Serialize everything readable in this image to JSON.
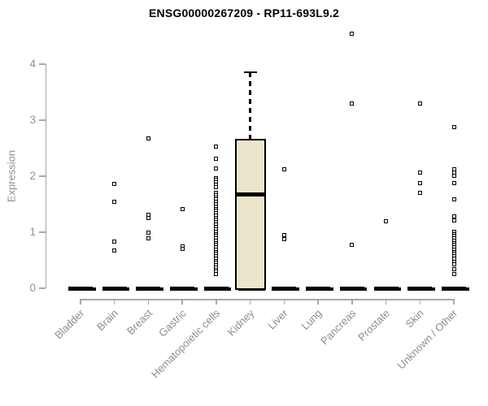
{
  "colors": {
    "background": "#ffffff",
    "axis_line": "#a8a8a8",
    "tick_label": "#8f9194",
    "category_label": "#8d8d8d",
    "point_border": "#000000",
    "box_fill": "#ebe5cb",
    "box_border": "#000000",
    "title": "#000000"
  },
  "chart_data": {
    "type": "boxplot",
    "title": "ENSG00000267209 - RP11-693L9.2",
    "ylabel": "Expression",
    "xlabel": "",
    "yticks": [
      0,
      1,
      2,
      3,
      4
    ],
    "ylim": [
      0,
      4.6
    ],
    "grid": false,
    "legend": "none",
    "categories": [
      "Bladder",
      "Brain",
      "Breast",
      "Gastric",
      "Hematopoietic cells",
      "Kidney",
      "Liver",
      "Lung",
      "Pancreas",
      "Prostate",
      "Skin",
      "Unknown / Other"
    ],
    "zero_cluster": [
      true,
      true,
      true,
      true,
      true,
      true,
      true,
      true,
      true,
      true,
      true,
      true
    ],
    "series": [
      {
        "name": "Bladder",
        "points": []
      },
      {
        "name": "Brain",
        "points": [
          1.86,
          1.55,
          0.84,
          0.67
        ]
      },
      {
        "name": "Breast",
        "points": [
          2.68,
          1.31,
          1.26,
          1.0,
          0.89
        ]
      },
      {
        "name": "Gastric",
        "points": [
          1.42,
          0.74,
          0.71
        ]
      },
      {
        "name": "Hematopoietic cells",
        "points": [
          2.53,
          2.31,
          2.14,
          1.97,
          1.93,
          1.89,
          1.85,
          1.81,
          1.7,
          1.66,
          1.62,
          1.58,
          1.54,
          1.5,
          1.46,
          1.42,
          1.38,
          1.34,
          1.3,
          1.26,
          1.22,
          1.18,
          1.14,
          1.09,
          1.05,
          1.01,
          0.97,
          0.93,
          0.89,
          0.85,
          0.81,
          0.77,
          0.73,
          0.69,
          0.65,
          0.61,
          0.57,
          0.53,
          0.49,
          0.45,
          0.41,
          0.37,
          0.33,
          0.29,
          0.25
        ]
      },
      {
        "name": "Kidney",
        "points": []
      },
      {
        "name": "Liver",
        "points": [
          2.12,
          0.95,
          0.88
        ]
      },
      {
        "name": "Lung",
        "points": []
      },
      {
        "name": "Pancreas",
        "points": [
          4.54,
          3.29,
          0.77
        ]
      },
      {
        "name": "Prostate",
        "points": [
          1.2
        ]
      },
      {
        "name": "Skin",
        "points": [
          3.29,
          2.06,
          1.88,
          1.7
        ]
      },
      {
        "name": "Unknown / Other",
        "points": [
          2.88,
          2.13,
          2.07,
          2.01,
          1.87,
          1.59,
          1.28,
          1.21,
          1.01,
          0.97,
          0.93,
          0.89,
          0.85,
          0.81,
          0.77,
          0.73,
          0.69,
          0.65,
          0.61,
          0.57,
          0.53,
          0.47,
          0.43,
          0.34,
          0.26
        ]
      }
    ],
    "boxes": [
      {
        "category": "Kidney",
        "whisker_low": 0,
        "q1": 0,
        "median": 1.67,
        "q3": 2.66,
        "whisker_high": 3.85
      }
    ]
  }
}
